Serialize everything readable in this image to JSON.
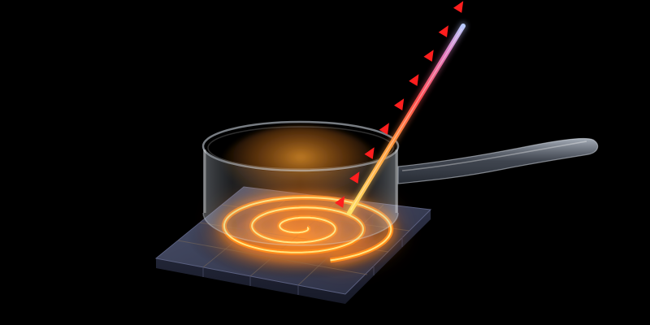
{
  "scene": {
    "description_tags": [
      "glass-saucepan",
      "spiral-heating-coil",
      "hot-plate",
      "thermometer-rod",
      "heat-arrows"
    ],
    "colors": {
      "background": "#000000",
      "coil_core": "#ffd84a",
      "coil_glow": "#ff7a1a",
      "plate_top": "#3a3f55",
      "plate_side": "#23263a",
      "arrows": "#ff1e1e",
      "rod_bottom": "#ffd84a",
      "rod_mid": "#ff5a3c",
      "rod_top": "#a9c4ff",
      "pan_glass": "#c9d6e3",
      "pan_warm": "#ff9a2a"
    },
    "arrow_count": 9
  }
}
